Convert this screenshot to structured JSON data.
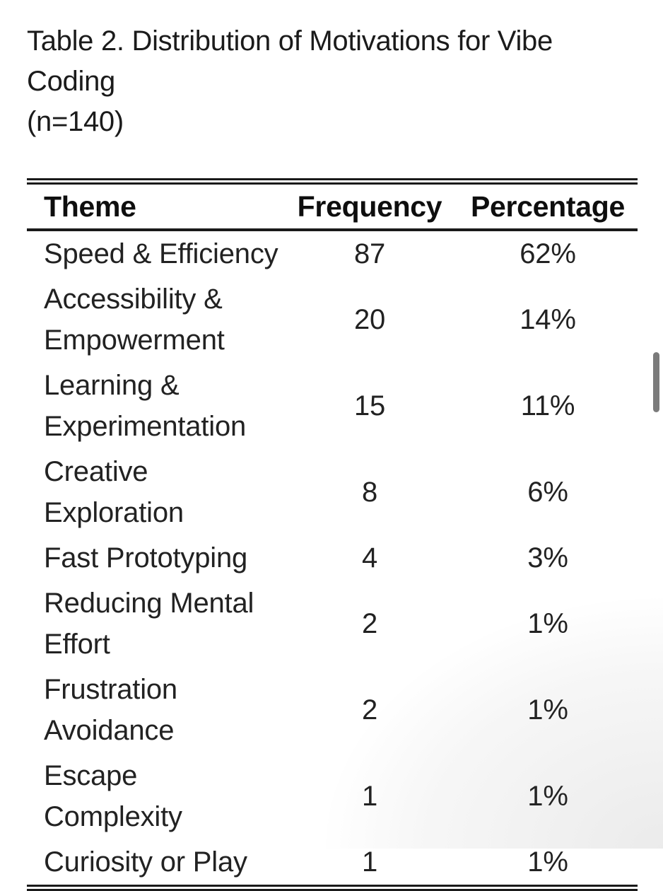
{
  "page": {
    "background_color": "#ffffff",
    "text_color": "#1c1c1c",
    "rule_color": "#1a1a1a",
    "scrollbar_color": "#7b7b7b"
  },
  "caption": {
    "line1": "Table 2. Distribution of Motivations for Vibe Coding",
    "line2": "(n=140)"
  },
  "table": {
    "columns": [
      "Theme",
      "Frequency",
      "Percentage"
    ],
    "rows": [
      {
        "theme": "Speed & Efficiency",
        "theme_lines": [
          "Speed & Efficiency"
        ],
        "frequency": "87",
        "percentage": "62%"
      },
      {
        "theme": "Accessibility & Empowerment",
        "theme_lines": [
          "Accessibility &",
          "Empowerment"
        ],
        "frequency": "20",
        "percentage": "14%"
      },
      {
        "theme": "Learning & Experimentation",
        "theme_lines": [
          "Learning &",
          "Experimentation"
        ],
        "frequency": "15",
        "percentage": "11%"
      },
      {
        "theme": "Creative Exploration",
        "theme_lines": [
          "Creative",
          "Exploration"
        ],
        "frequency": "8",
        "percentage": "6%"
      },
      {
        "theme": "Fast Prototyping",
        "theme_lines": [
          "Fast Prototyping"
        ],
        "frequency": "4",
        "percentage": "3%"
      },
      {
        "theme": "Reducing Mental Effort",
        "theme_lines": [
          "Reducing Mental",
          "Effort"
        ],
        "frequency": "2",
        "percentage": "1%"
      },
      {
        "theme": "Frustration Avoidance",
        "theme_lines": [
          "Frustration",
          "Avoidance"
        ],
        "frequency": "2",
        "percentage": "1%"
      },
      {
        "theme": "Escape Complexity",
        "theme_lines": [
          "Escape Complexity"
        ],
        "frequency": "1",
        "percentage": "1%"
      },
      {
        "theme": "Curiosity or Play",
        "theme_lines": [
          "Curiosity or Play"
        ],
        "frequency": "1",
        "percentage": "1%"
      }
    ],
    "total_n": "140"
  }
}
